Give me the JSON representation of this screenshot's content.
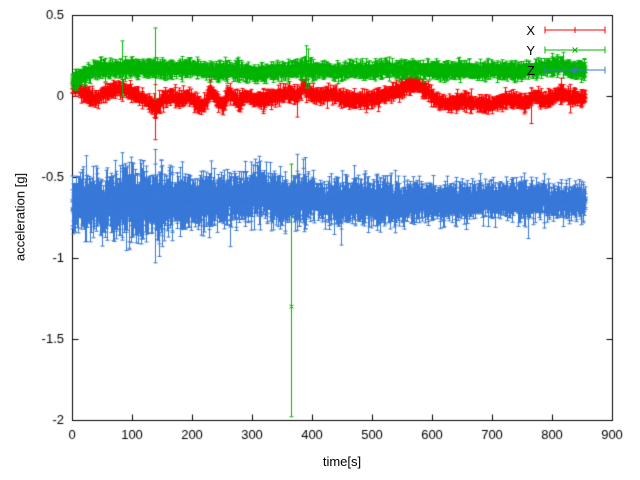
{
  "chart_data": {
    "type": "scatter",
    "style": "points-with-errorbars",
    "title": "",
    "xlabel": "time[s]",
    "ylabel": "acceleration [g]",
    "xlim": [
      0,
      900
    ],
    "ylim": [
      -2,
      0.5
    ],
    "xticks": [
      0,
      100,
      200,
      300,
      400,
      500,
      600,
      700,
      800,
      900
    ],
    "yticks": [
      -2,
      -1.5,
      -1,
      -0.5,
      0,
      0.5
    ],
    "grid": false,
    "legend_position": "top-right",
    "sample": {
      "start": 0,
      "end": 855,
      "step": 0.5
    },
    "series": [
      {
        "name": "X",
        "color": "#ff0000",
        "marker": "plus",
        "noise": 0.01,
        "errorbar": 0.012,
        "errorbar_jitter": 0.02,
        "baseline": [
          [
            0,
            0.05
          ],
          [
            8,
            0.06
          ],
          [
            15,
            0.02
          ],
          [
            25,
            0.0
          ],
          [
            40,
            -0.02
          ],
          [
            55,
            0.02
          ],
          [
            70,
            0.04
          ],
          [
            85,
            0.04
          ],
          [
            100,
            0.02
          ],
          [
            115,
            -0.01
          ],
          [
            130,
            -0.05
          ],
          [
            140,
            -0.08
          ],
          [
            150,
            -0.02
          ],
          [
            165,
            0.0
          ],
          [
            180,
            -0.02
          ],
          [
            195,
            0.0
          ],
          [
            210,
            -0.05
          ],
          [
            220,
            -0.06
          ],
          [
            230,
            0.04
          ],
          [
            240,
            -0.02
          ],
          [
            250,
            -0.06
          ],
          [
            260,
            0.02
          ],
          [
            270,
            -0.01
          ],
          [
            280,
            -0.04
          ],
          [
            290,
            0.01
          ],
          [
            300,
            -0.02
          ],
          [
            315,
            -0.03
          ],
          [
            330,
            -0.01
          ],
          [
            345,
            0.0
          ],
          [
            360,
            0.02
          ],
          [
            375,
            0.0
          ],
          [
            385,
            0.06
          ],
          [
            395,
            0.02
          ],
          [
            410,
            0.0
          ],
          [
            425,
            0.01
          ],
          [
            440,
            0.0
          ],
          [
            455,
            -0.02
          ],
          [
            470,
            -0.03
          ],
          [
            485,
            -0.02
          ],
          [
            500,
            -0.02
          ],
          [
            515,
            0.0
          ],
          [
            530,
            0.02
          ],
          [
            545,
            0.03
          ],
          [
            560,
            0.07
          ],
          [
            575,
            0.07
          ],
          [
            590,
            0.03
          ],
          [
            605,
            -0.02
          ],
          [
            620,
            -0.05
          ],
          [
            635,
            -0.04
          ],
          [
            650,
            -0.03
          ],
          [
            665,
            -0.04
          ],
          [
            680,
            -0.05
          ],
          [
            695,
            -0.06
          ],
          [
            710,
            -0.04
          ],
          [
            725,
            -0.02
          ],
          [
            740,
            -0.03
          ],
          [
            755,
            -0.04
          ],
          [
            770,
            0.0
          ],
          [
            785,
            -0.03
          ],
          [
            800,
            -0.01
          ],
          [
            815,
            0.02
          ],
          [
            830,
            -0.01
          ],
          [
            855,
            -0.01
          ]
        ],
        "outliers": [
          [
            138,
            -0.1,
            0.17
          ],
          [
            375,
            -0.03,
            0.1
          ],
          [
            765,
            -0.06,
            0.11
          ],
          [
            815,
            0.03,
            0.08
          ]
        ]
      },
      {
        "name": "Y",
        "color": "#00b400",
        "marker": "cross",
        "noise": 0.011,
        "errorbar": 0.015,
        "errorbar_jitter": 0.02,
        "baseline": [
          [
            0,
            0.1
          ],
          [
            10,
            0.11
          ],
          [
            20,
            0.13
          ],
          [
            40,
            0.16
          ],
          [
            60,
            0.17
          ],
          [
            80,
            0.17
          ],
          [
            100,
            0.18
          ],
          [
            120,
            0.17
          ],
          [
            140,
            0.17
          ],
          [
            160,
            0.16
          ],
          [
            180,
            0.17
          ],
          [
            200,
            0.17
          ],
          [
            220,
            0.16
          ],
          [
            240,
            0.15
          ],
          [
            260,
            0.16
          ],
          [
            280,
            0.15
          ],
          [
            300,
            0.14
          ],
          [
            320,
            0.14
          ],
          [
            340,
            0.15
          ],
          [
            360,
            0.16
          ],
          [
            380,
            0.17
          ],
          [
            400,
            0.16
          ],
          [
            420,
            0.16
          ],
          [
            440,
            0.15
          ],
          [
            460,
            0.16
          ],
          [
            480,
            0.16
          ],
          [
            500,
            0.16
          ],
          [
            520,
            0.17
          ],
          [
            540,
            0.16
          ],
          [
            560,
            0.17
          ],
          [
            580,
            0.16
          ],
          [
            600,
            0.16
          ],
          [
            620,
            0.15
          ],
          [
            640,
            0.16
          ],
          [
            660,
            0.16
          ],
          [
            680,
            0.15
          ],
          [
            700,
            0.16
          ],
          [
            720,
            0.16
          ],
          [
            740,
            0.15
          ],
          [
            760,
            0.16
          ],
          [
            780,
            0.17
          ],
          [
            800,
            0.18
          ],
          [
            815,
            0.19
          ],
          [
            830,
            0.16
          ],
          [
            855,
            0.16
          ]
        ],
        "outliers": [
          [
            83,
            0.17,
            0.17
          ],
          [
            138,
            0.2,
            0.22
          ],
          [
            365,
            -1.3,
            0.68,
            0.88
          ],
          [
            390,
            0.18,
            0.13
          ],
          [
            394,
            0.17,
            0.12
          ],
          [
            818,
            0.19,
            0.08
          ]
        ]
      },
      {
        "name": "Z",
        "color": "#3878d8",
        "marker": "star",
        "noise": 0.028,
        "errorbar": 0.045,
        "errorbar_jitter": 0.05,
        "amp_keypoints": [
          [
            0,
            1.4
          ],
          [
            60,
            1.4
          ],
          [
            100,
            1.5
          ],
          [
            160,
            1.3
          ],
          [
            200,
            1.1
          ],
          [
            300,
            1.2
          ],
          [
            400,
            1.0
          ],
          [
            500,
            1.0
          ],
          [
            600,
            0.85
          ],
          [
            700,
            0.8
          ],
          [
            855,
            0.8
          ]
        ],
        "baseline": [
          [
            0,
            -0.66
          ],
          [
            30,
            -0.65
          ],
          [
            60,
            -0.66
          ],
          [
            90,
            -0.65
          ],
          [
            120,
            -0.66
          ],
          [
            150,
            -0.66
          ],
          [
            180,
            -0.65
          ],
          [
            210,
            -0.66
          ],
          [
            240,
            -0.65
          ],
          [
            270,
            -0.64
          ],
          [
            300,
            -0.62
          ],
          [
            315,
            -0.6
          ],
          [
            330,
            -0.62
          ],
          [
            350,
            -0.66
          ],
          [
            380,
            -0.64
          ],
          [
            400,
            -0.63
          ],
          [
            430,
            -0.66
          ],
          [
            460,
            -0.65
          ],
          [
            490,
            -0.64
          ],
          [
            520,
            -0.65
          ],
          [
            550,
            -0.66
          ],
          [
            580,
            -0.65
          ],
          [
            610,
            -0.66
          ],
          [
            640,
            -0.65
          ],
          [
            670,
            -0.65
          ],
          [
            700,
            -0.64
          ],
          [
            730,
            -0.65
          ],
          [
            760,
            -0.64
          ],
          [
            790,
            -0.65
          ],
          [
            820,
            -0.65
          ],
          [
            855,
            -0.65
          ]
        ],
        "outliers": [
          [
            83,
            -0.62,
            0.27
          ],
          [
            95,
            -0.7,
            0.2
          ],
          [
            138,
            -0.68,
            0.35
          ],
          [
            150,
            -0.68,
            0.25
          ],
          [
            263,
            -0.8,
            0.13
          ],
          [
            305,
            -0.52,
            0.13
          ],
          [
            330,
            -0.55,
            0.14
          ],
          [
            375,
            -0.5,
            0.14
          ],
          [
            385,
            -0.52,
            0.13
          ],
          [
            388,
            -0.6,
            0.22
          ],
          [
            448,
            -0.78,
            0.14
          ],
          [
            470,
            -0.55,
            0.12
          ],
          [
            760,
            -0.72,
            0.16
          ]
        ]
      }
    ]
  }
}
